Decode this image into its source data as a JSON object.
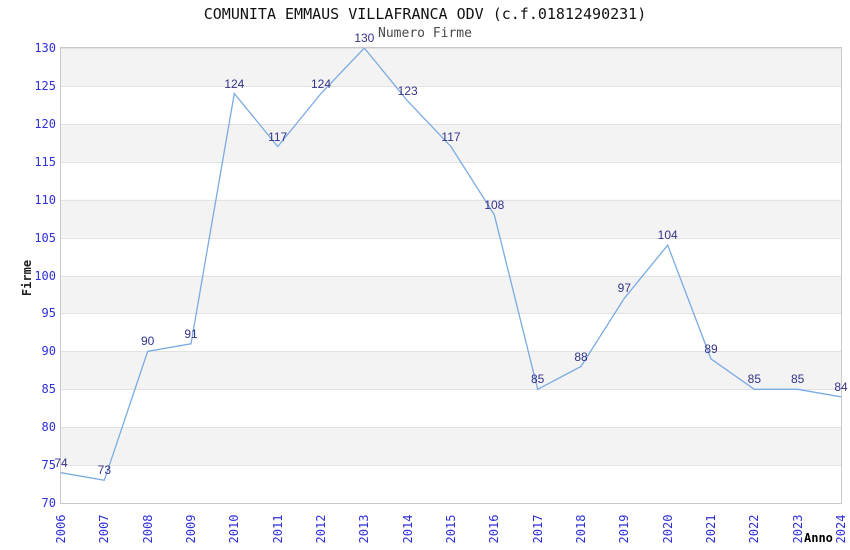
{
  "title": "COMUNITA EMMAUS VILLAFRANCA ODV (c.f.01812490231)",
  "subtitle": "Numero Firme",
  "chart_data": {
    "type": "line",
    "title": "COMUNITA EMMAUS VILLAFRANCA ODV (c.f.01812490231)",
    "subtitle": "Numero Firme",
    "xlabel": "Anno",
    "ylabel": "Firme",
    "categories": [
      "2006",
      "2007",
      "2008",
      "2009",
      "2010",
      "2011",
      "2012",
      "2013",
      "2014",
      "2015",
      "2016",
      "2017",
      "2018",
      "2019",
      "2020",
      "2021",
      "2022",
      "2023",
      "2024"
    ],
    "values": [
      74,
      73,
      90,
      91,
      124,
      117,
      124,
      130,
      123,
      117,
      108,
      85,
      88,
      97,
      104,
      89,
      85,
      85,
      84
    ],
    "ylim": [
      70,
      130
    ],
    "ytick_step": 5,
    "yticks": [
      70,
      75,
      80,
      85,
      90,
      95,
      100,
      105,
      110,
      115,
      120,
      125,
      130
    ],
    "grid": "horizontal gridlines with alternating shaded bands",
    "legend": "none",
    "point_labels_shown": true
  },
  "colors": {
    "background": "#ffffff",
    "line": "#7aabe2",
    "tick_label": "#2f2fd8",
    "data_label": "#333388",
    "band_gray": "#f3f3f3",
    "grid_line": "#e2e2e2",
    "plot_border": "#c9c9c9",
    "title_text": "#111111",
    "subtitle_text": "#4a4a4a",
    "axis_title": "#222222"
  }
}
